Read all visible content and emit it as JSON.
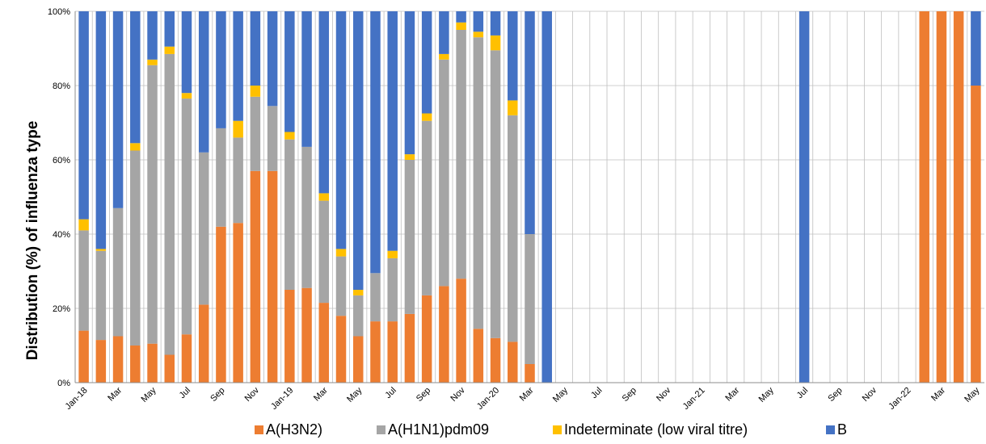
{
  "chart_data": {
    "type": "bar",
    "stacked": true,
    "ylabel": "Distribution (%) of influenza  type",
    "ylim": [
      0,
      100
    ],
    "yticks": [
      "0%",
      "20%",
      "40%",
      "60%",
      "80%",
      "100%"
    ],
    "grid": true,
    "legend_position": "bottom",
    "categories": [
      "Jan-18",
      "Feb-18",
      "Mar-18",
      "Apr-18",
      "May-18",
      "Jun-18",
      "Jul-18",
      "Aug-18",
      "Sep-18",
      "Oct-18",
      "Nov-18",
      "Dec-18",
      "Jan-19",
      "Feb-19",
      "Mar-19",
      "Apr-19",
      "May-19",
      "Jun-19",
      "Jul-19",
      "Aug-19",
      "Sep-19",
      "Oct-19",
      "Nov-19",
      "Dec-19",
      "Jan-20",
      "Feb-20",
      "Mar-20",
      "Apr-20",
      "May-20",
      "Jun-20",
      "Jul-20",
      "Aug-20",
      "Sep-20",
      "Oct-20",
      "Nov-20",
      "Dec-20",
      "Jan-21",
      "Feb-21",
      "Mar-21",
      "Apr-21",
      "May-21",
      "Jun-21",
      "Jul-21",
      "Aug-21",
      "Sep-21",
      "Oct-21",
      "Nov-21",
      "Dec-21",
      "Jan-22",
      "Feb-22",
      "Mar-22",
      "Apr-22",
      "May-22"
    ],
    "x_tick_labels": [
      "Jan-18",
      "",
      "Mar",
      "",
      "May",
      "",
      "Jul",
      "",
      "Sep",
      "",
      "Nov",
      "",
      "Jan-19",
      "",
      "Mar",
      "",
      "May",
      "",
      "Jul",
      "",
      "Sep",
      "",
      "Nov",
      "",
      "Jan-20",
      "",
      "Mar",
      "",
      "May",
      "",
      "Jul",
      "",
      "Sep",
      "",
      "Nov",
      "",
      "Jan-21",
      "",
      "Mar",
      "",
      "May",
      "",
      "Jul",
      "",
      "Sep",
      "",
      "Nov",
      "",
      "Jan-22",
      "",
      "Mar",
      "",
      "May"
    ],
    "series": [
      {
        "name": "A(H3N2)",
        "color": "#ED7D31",
        "values": [
          14,
          11.5,
          12.5,
          10,
          10.5,
          7.5,
          13,
          21,
          42,
          43,
          57,
          57,
          25,
          25.5,
          21.5,
          18,
          12.5,
          16.5,
          16.5,
          18.5,
          23.5,
          26,
          28,
          14.5,
          12,
          11,
          5,
          0,
          0,
          0,
          0,
          0,
          0,
          0,
          0,
          0,
          0,
          0,
          0,
          0,
          0,
          0,
          0,
          0,
          0,
          0,
          0,
          0,
          0,
          100,
          100,
          100,
          80
        ]
      },
      {
        "name": "A(H1N1)pdm09",
        "color": "#A5A5A5",
        "values": [
          27,
          24,
          34.5,
          52.5,
          75,
          81,
          63.5,
          41,
          26.5,
          23,
          20,
          17.5,
          40.5,
          38,
          27.5,
          16,
          11,
          13,
          17,
          41.5,
          47,
          61,
          67,
          78.5,
          77.5,
          61,
          35,
          0,
          0,
          0,
          0,
          0,
          0,
          0,
          0,
          0,
          0,
          0,
          0,
          0,
          0,
          0,
          0,
          0,
          0,
          0,
          0,
          0,
          0,
          0,
          0,
          0,
          0
        ]
      },
      {
        "name": "Indeterminate (low viral titre)",
        "color": "#FFC000",
        "values": [
          3,
          0.5,
          0,
          2,
          1.5,
          2,
          1.5,
          0,
          0,
          4.5,
          3,
          0,
          2,
          0,
          2,
          2,
          1.5,
          0,
          2,
          1.5,
          2,
          1.5,
          2,
          1.5,
          4,
          4,
          0,
          0,
          0,
          0,
          0,
          0,
          0,
          0,
          0,
          0,
          0,
          0,
          0,
          0,
          0,
          0,
          0,
          0,
          0,
          0,
          0,
          0,
          0,
          0,
          0,
          0,
          0
        ]
      },
      {
        "name": "B",
        "color": "#4472C4",
        "values": [
          56,
          64,
          53,
          35.5,
          13,
          9.5,
          22,
          38,
          31.5,
          29.5,
          20,
          25.5,
          32.5,
          36.5,
          49,
          64,
          75,
          70.5,
          64.5,
          38.5,
          27.5,
          11.5,
          3,
          5.5,
          6.5,
          24,
          60,
          100,
          0,
          0,
          0,
          0,
          0,
          0,
          0,
          0,
          0,
          0,
          0,
          0,
          0,
          0,
          100,
          0,
          0,
          0,
          0,
          0,
          0,
          0,
          0,
          0,
          20
        ]
      }
    ]
  }
}
